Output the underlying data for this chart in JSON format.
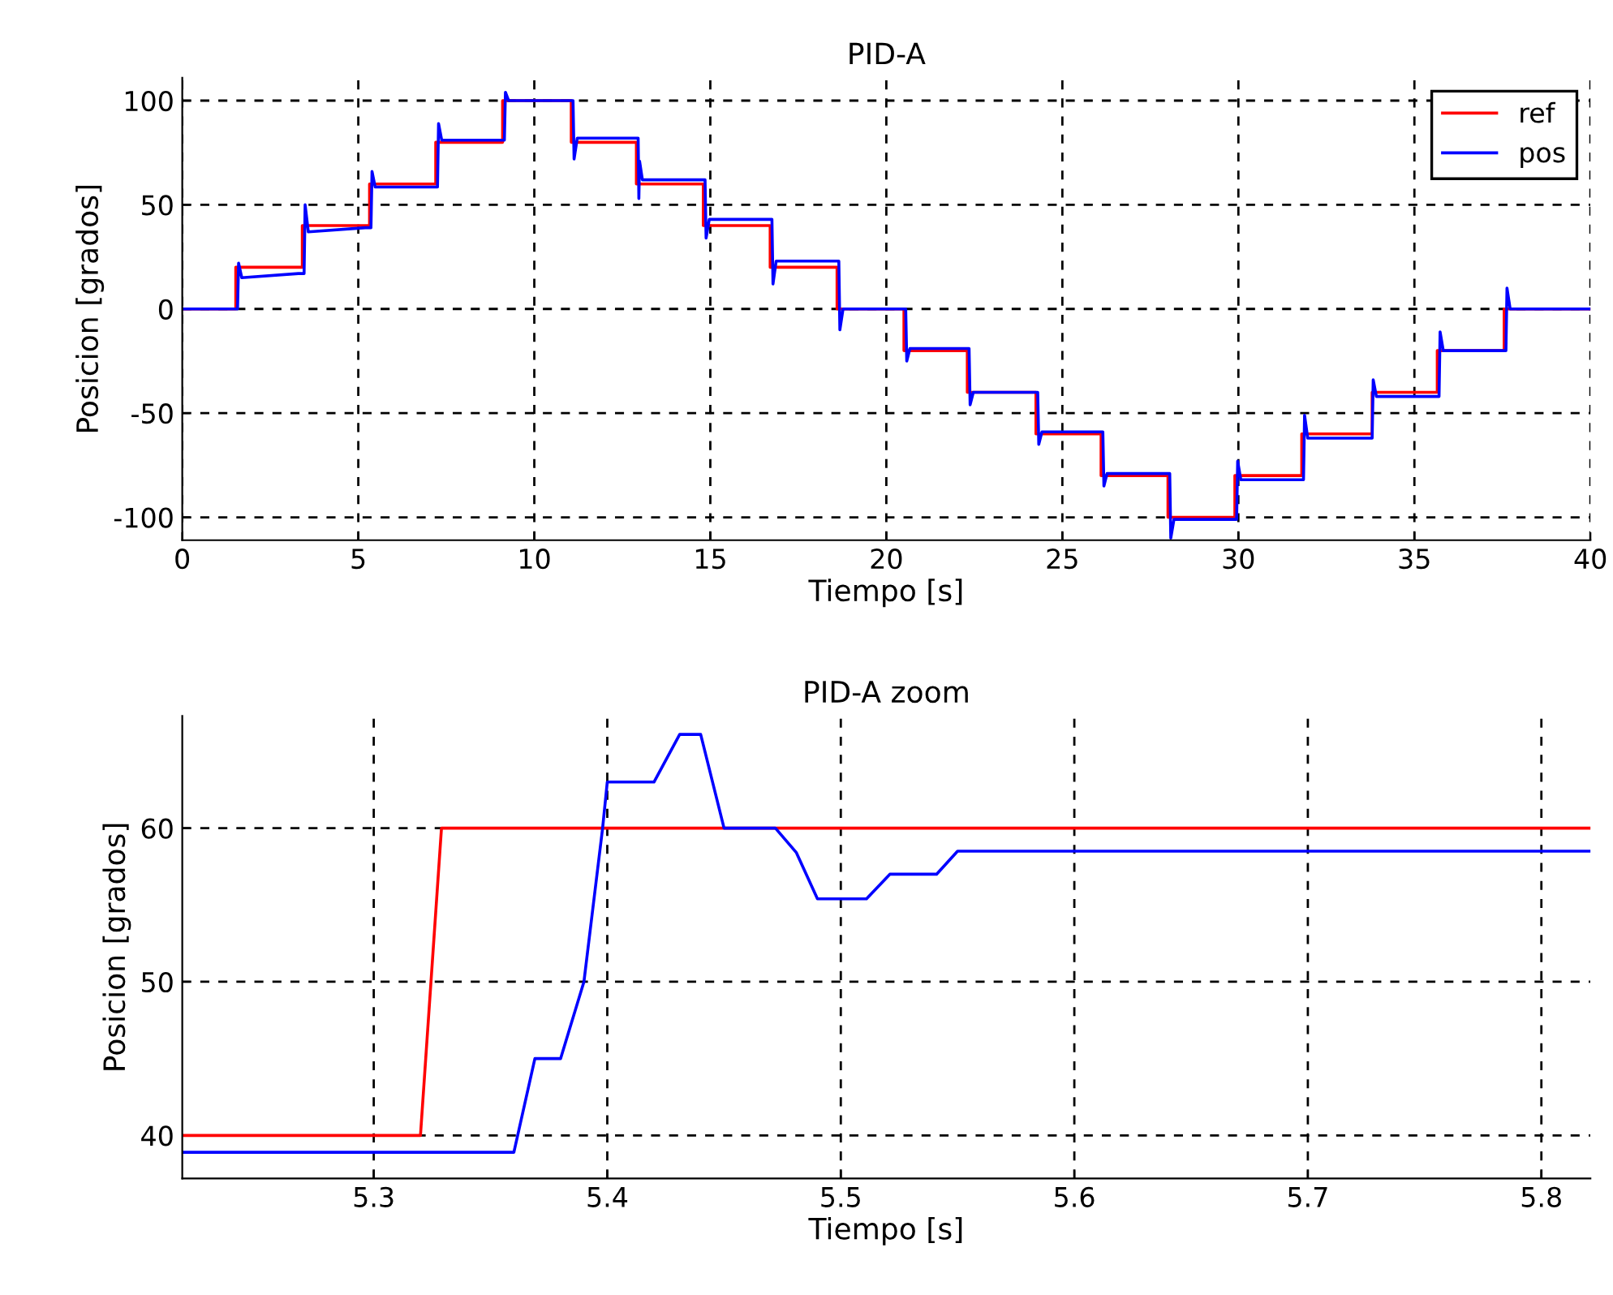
{
  "chart_data": [
    {
      "type": "line",
      "title": "PID-A",
      "xlabel": "Tiempo [s]",
      "ylabel": "Posicion [grados]",
      "xlim": [
        0,
        40
      ],
      "ylim": [
        -111,
        111
      ],
      "xticks": [
        0,
        5,
        10,
        15,
        20,
        25,
        30,
        35,
        40
      ],
      "yticks": [
        -100,
        -50,
        0,
        50,
        100
      ],
      "grid": true,
      "legend": "top right",
      "line_style": "solid",
      "marker": "none",
      "series": [
        {
          "name": "ref",
          "type": "step",
          "color": "#ff0000",
          "x": [
            0,
            1.52,
            3.41,
            5.32,
            7.2,
            9.1,
            11.05,
            12.9,
            14.8,
            16.7,
            18.6,
            20.5,
            22.3,
            24.25,
            26.1,
            28.0,
            29.9,
            31.8,
            33.8,
            35.65,
            37.55,
            40
          ],
          "values": [
            0,
            20,
            40,
            60,
            80,
            100,
            80,
            60,
            40,
            20,
            0,
            -20,
            -40,
            -60,
            -80,
            -100,
            -80,
            -60,
            -40,
            -20,
            0,
            0
          ]
        },
        {
          "name": "pos",
          "type": "line",
          "color": "#0000ff",
          "x": [
            0,
            1.57,
            1.6,
            1.69,
            3.3,
            3.46,
            3.49,
            3.58,
            5.2,
            5.36,
            5.39,
            5.48,
            7.25,
            7.28,
            7.37,
            9.15,
            9.18,
            9.27,
            11.1,
            11.13,
            11.22,
            12.95,
            12.97,
            12.99,
            13.07,
            14.85,
            14.88,
            14.97,
            16.75,
            16.78,
            16.87,
            18.65,
            18.68,
            18.77,
            20.55,
            20.58,
            20.67,
            22.35,
            22.38,
            22.47,
            24.3,
            24.33,
            24.42,
            26.15,
            26.18,
            26.27,
            28.05,
            28.08,
            28.17,
            29.95,
            29.98,
            30.07,
            31.85,
            31.88,
            31.97,
            33.8,
            33.83,
            33.92,
            35.7,
            35.73,
            35.82,
            37.6,
            37.63,
            37.72,
            40
          ],
          "values": [
            0,
            0,
            22,
            15,
            17,
            17,
            50,
            37,
            39,
            39,
            66,
            58.5,
            58.5,
            89,
            81,
            81,
            104,
            100,
            100,
            72,
            82,
            82,
            53,
            71,
            62,
            62,
            34,
            43,
            43,
            12,
            23,
            23,
            -10,
            0,
            0,
            -25,
            -19,
            -19,
            -46,
            -40,
            -40,
            -65,
            -59,
            -59,
            -85,
            -79,
            -79,
            -110,
            -101,
            -101,
            -73,
            -82,
            -82,
            -51,
            -62,
            -62,
            -34,
            -42,
            -42,
            -11,
            -20,
            -20,
            10,
            0,
            0
          ]
        }
      ]
    },
    {
      "type": "line",
      "title": "PID-A zoom",
      "xlabel": "Tiempo [s]",
      "ylabel": "Posicion [grados]",
      "xlim": [
        5.218,
        5.821
      ],
      "ylim": [
        37.2,
        67.3
      ],
      "xticks": [
        5.3,
        5.4,
        5.5,
        5.6,
        5.7,
        5.8
      ],
      "yticks": [
        40,
        50,
        60
      ],
      "grid": true,
      "line_style": "solid",
      "marker": "none",
      "series": [
        {
          "color": "#ff0000",
          "x": [
            5.218,
            5.32,
            5.329,
            5.821
          ],
          "values": [
            40,
            40,
            60,
            60
          ]
        },
        {
          "color": "#0000ff",
          "x": [
            5.218,
            5.36,
            5.369,
            5.38,
            5.39,
            5.398,
            5.4,
            5.42,
            5.431,
            5.44,
            5.45,
            5.472,
            5.481,
            5.49,
            5.511,
            5.521,
            5.541,
            5.55,
            5.821
          ],
          "values": [
            38.9,
            38.9,
            45,
            45,
            50,
            60,
            63,
            63,
            66.1,
            66.1,
            60,
            60,
            58.4,
            55.4,
            55.4,
            57,
            57,
            58.5,
            58.5
          ]
        }
      ]
    }
  ]
}
